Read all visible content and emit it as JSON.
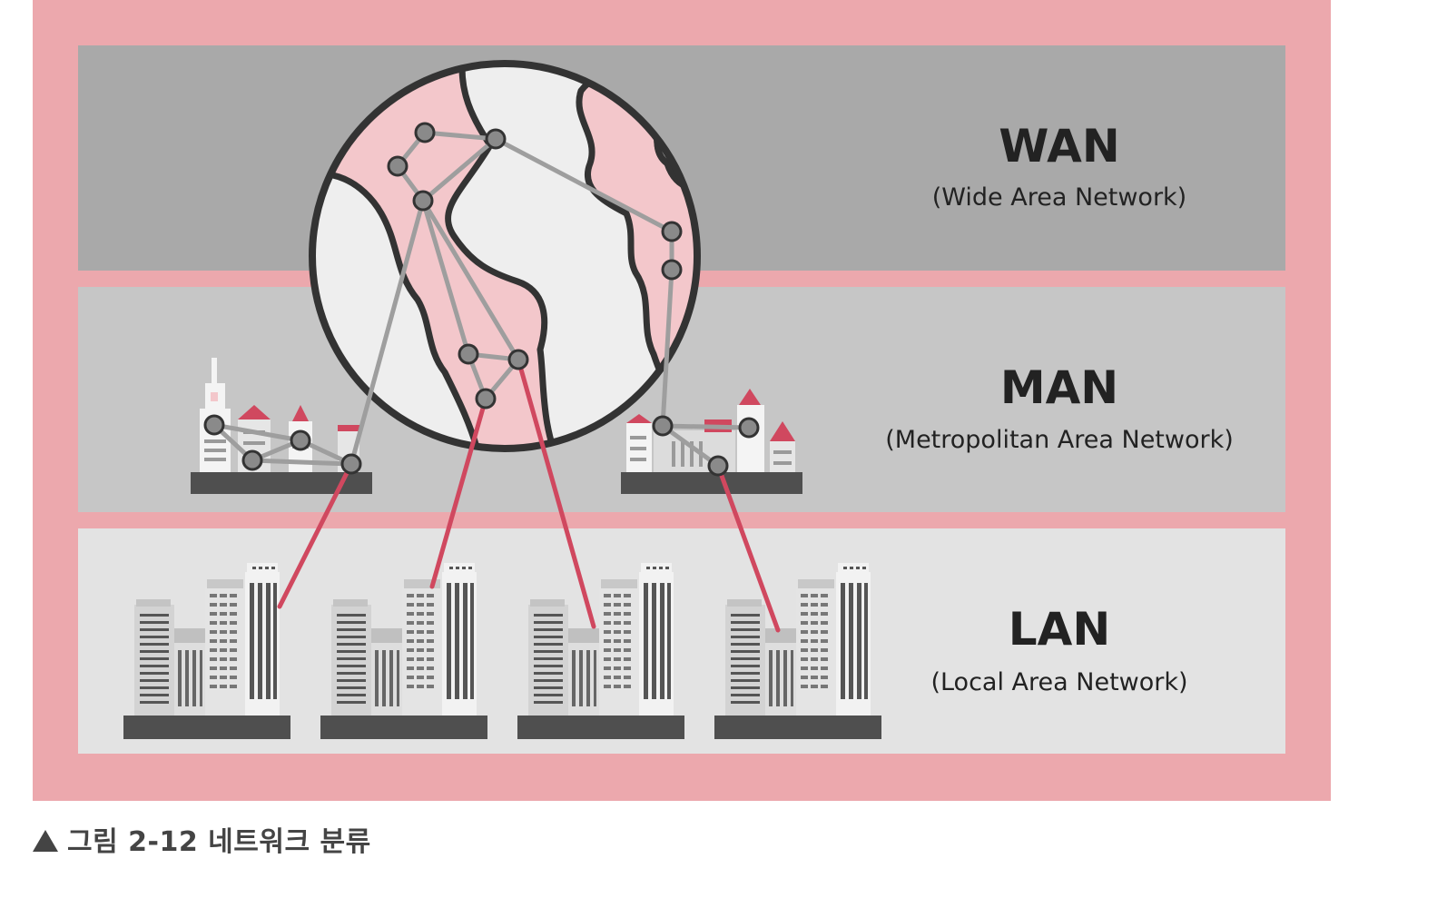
{
  "layers": [
    {
      "key": "wan",
      "title": "WAN",
      "subtitle": "(Wide Area Network)"
    },
    {
      "key": "man",
      "title": "MAN",
      "subtitle": "(Metropolitan Area Network)"
    },
    {
      "key": "lan",
      "title": "LAN",
      "subtitle": "(Local Area Network)"
    }
  ],
  "caption": "그림 2-12 네트워크 분류",
  "colors": {
    "frame": "#eca8ad",
    "wan_band": "#a9a9a9",
    "man_band": "#c6c6c6",
    "lan_band": "#e3e3e3",
    "land": "#f3c7cb",
    "ocean": "#eeeeee",
    "link_gray": "#9e9e9e",
    "link_red": "#d0485f",
    "node": "#8a8a8a",
    "base": "#4f4f4f"
  },
  "icons": [
    "globe-icon",
    "city-skyline-icon",
    "office-buildings-icon",
    "network-node-icon",
    "triangle-up-icon"
  ]
}
